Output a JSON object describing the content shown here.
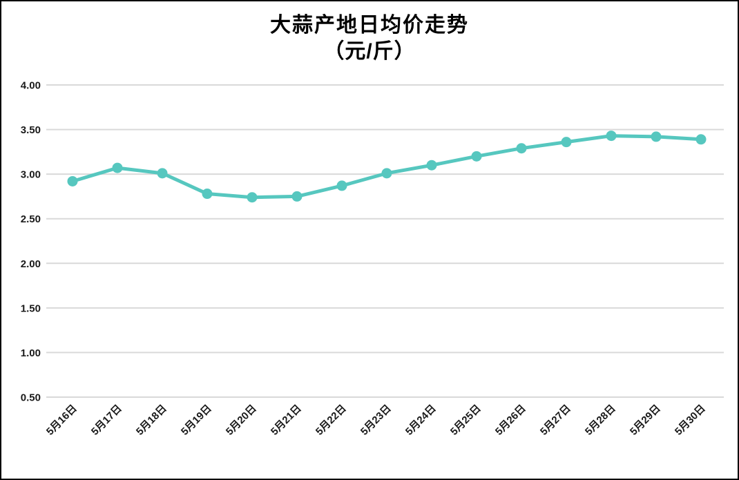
{
  "chart_data": {
    "type": "line",
    "title": "大蒜产地日均价走势",
    "subtitle": "（元/斤）",
    "categories": [
      "5月16日",
      "5月17日",
      "5月18日",
      "5月19日",
      "5月20日",
      "5月21日",
      "5月22日",
      "5月23日",
      "5月24日",
      "5月25日",
      "5月26日",
      "5月27日",
      "5月28日",
      "5月29日",
      "5月30日"
    ],
    "values": [
      2.92,
      3.07,
      3.01,
      2.78,
      2.74,
      2.75,
      2.87,
      3.01,
      3.1,
      3.2,
      3.29,
      3.36,
      3.43,
      3.42,
      3.39
    ],
    "xlabel": "",
    "ylabel": "",
    "ylim": [
      0.5,
      4.0
    ],
    "ytick_interval": 0.5,
    "y_tick_labels": [
      "4.00",
      "3.50",
      "3.00",
      "2.50",
      "2.00",
      "1.50",
      "1.00",
      "0.50"
    ],
    "x_label_rotation": 45,
    "grid": true,
    "legend": false,
    "line_color": "#56C7BF",
    "marker_color": "#56C7BF",
    "grid_color": "#D9D9D9",
    "background_color": "#FFFFFF",
    "border_color": "#000000"
  }
}
